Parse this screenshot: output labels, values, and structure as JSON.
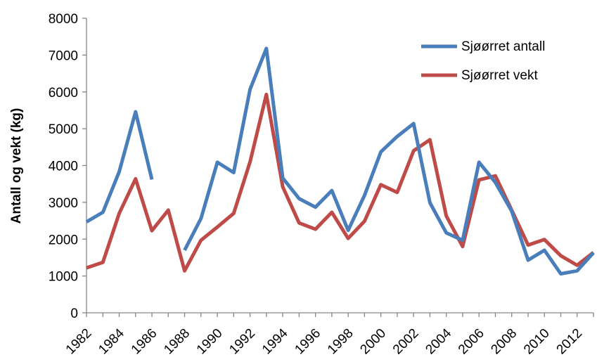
{
  "chart_data": {
    "type": "line",
    "title": "",
    "xlabel": "",
    "ylabel": "Antall og vekt (kg)",
    "ylim": [
      0,
      8000
    ],
    "yticks": [
      0,
      1000,
      2000,
      3000,
      4000,
      5000,
      6000,
      7000,
      8000
    ],
    "xlim": [
      1982,
      2013
    ],
    "xticks": [
      "1982",
      "1984",
      "1986",
      "1988",
      "1990",
      "1992",
      "1994",
      "1996",
      "1998",
      "2000",
      "2002",
      "2004",
      "2006",
      "2008",
      "2010",
      "2012"
    ],
    "grid": false,
    "legend_position": "top-right",
    "x": [
      1982,
      1983,
      1984,
      1985,
      1986,
      1987,
      1988,
      1989,
      1990,
      1991,
      1992,
      1993,
      1994,
      1995,
      1996,
      1997,
      1998,
      1999,
      2000,
      2001,
      2002,
      2003,
      2004,
      2005,
      2006,
      2007,
      2008,
      2009,
      2010,
      2011,
      2012,
      2013
    ],
    "series": [
      {
        "name": "Sjøørret antall",
        "color": "#4a7ebb",
        "values": [
          2470,
          2730,
          3830,
          5460,
          3620,
          null,
          1700,
          2560,
          4090,
          3810,
          6070,
          7180,
          3660,
          3100,
          2870,
          3320,
          2240,
          3190,
          4370,
          4790,
          5140,
          2990,
          2170,
          1970,
          4090,
          3540,
          2760,
          1430,
          1700,
          1060,
          1140,
          1630
        ]
      },
      {
        "name": "Sjøørret vekt",
        "color": "#be4b48",
        "values": [
          1220,
          1370,
          2700,
          3640,
          2230,
          2790,
          1140,
          1970,
          2330,
          2700,
          4100,
          5930,
          3420,
          2440,
          2270,
          2730,
          2020,
          2490,
          3480,
          3270,
          4400,
          4700,
          2630,
          1800,
          3610,
          3720,
          2790,
          1840,
          1990,
          1550,
          1290,
          1640
        ]
      }
    ]
  }
}
